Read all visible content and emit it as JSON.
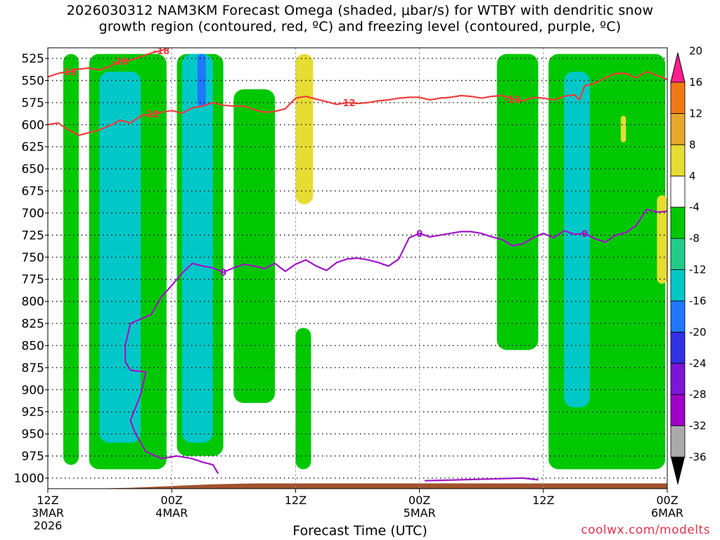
{
  "title_line1": "2026030312 NAM3KM Forecast Omega (shaded, μbar/s) for WTBY with dendritic snow",
  "title_line2": "growth region (contoured, red, ºC) and freezing level (contoured, purple, ºC)",
  "credit": "coolwx.com/modelts",
  "chart_data": {
    "type": "heatmap",
    "xlabel": "Forecast Time (UTC)",
    "ylabel": "",
    "x_ticks": [
      {
        "label": "12Z",
        "sub1": "3MAR",
        "sub2": "2026",
        "hour": 0
      },
      {
        "label": "00Z",
        "sub1": "4MAR",
        "sub2": "",
        "hour": 12
      },
      {
        "label": "12Z",
        "sub1": "",
        "sub2": "",
        "hour": 24
      },
      {
        "label": "00Z",
        "sub1": "5MAR",
        "sub2": "",
        "hour": 36
      },
      {
        "label": "12Z",
        "sub1": "",
        "sub2": "",
        "hour": 48
      },
      {
        "label": "00Z",
        "sub1": "6MAR",
        "sub2": "",
        "hour": 60
      }
    ],
    "x_range_hours": [
      0,
      60
    ],
    "y_ticks": [
      525,
      550,
      575,
      600,
      625,
      650,
      675,
      700,
      725,
      750,
      775,
      800,
      825,
      850,
      875,
      900,
      925,
      950,
      975,
      1000
    ],
    "y_range_hpa": [
      513,
      1012
    ],
    "y_inverted": true,
    "grid": true,
    "colorbar": {
      "levels": [
        -36,
        -32,
        -28,
        -24,
        -20,
        -16,
        -12,
        -8,
        -4,
        4,
        8,
        12,
        16,
        20
      ],
      "colors": [
        "#aaaaaa",
        "#a000c8",
        "#7a16d8",
        "#3030e6",
        "#1e78ff",
        "#00c8c8",
        "#22cc88",
        "#00c800",
        "#ffffff",
        "#e6dc32",
        "#e6a82a",
        "#f07814",
        "#f03232",
        "#ff1e8c"
      ]
    },
    "omega_regions": [
      {
        "name": "",
        "value": -6,
        "hours": [
          1.5,
          3.0
        ],
        "hpa": [
          520,
          985
        ]
      },
      {
        "name": "",
        "value": -6,
        "hours": [
          4.0,
          11.5
        ],
        "hpa": [
          520,
          990
        ]
      },
      {
        "name": "",
        "value": -14,
        "hours": [
          5.0,
          9.0
        ],
        "hpa": [
          540,
          960
        ]
      },
      {
        "name": "",
        "value": -6,
        "hours": [
          12.5,
          17.0
        ],
        "hpa": [
          520,
          975
        ]
      },
      {
        "name": "",
        "value": -14,
        "hours": [
          13.0,
          16.0
        ],
        "hpa": [
          520,
          960
        ]
      },
      {
        "name": "",
        "value": -18,
        "hours": [
          14.5,
          15.3
        ],
        "hpa": [
          520,
          580
        ]
      },
      {
        "name": "",
        "value": -6,
        "hours": [
          18.0,
          22.0
        ],
        "hpa": [
          560,
          915
        ]
      },
      {
        "name": "",
        "value": -6,
        "hours": [
          24.0,
          25.5
        ],
        "hpa": [
          830,
          990
        ]
      },
      {
        "name": "",
        "value": 6,
        "hours": [
          24.0,
          25.7
        ],
        "hpa": [
          520,
          690
        ]
      },
      {
        "name": "",
        "value": -6,
        "hours": [
          43.5,
          47.5
        ],
        "hpa": [
          520,
          855
        ]
      },
      {
        "name": "",
        "value": -6,
        "hours": [
          48.5,
          59.8
        ],
        "hpa": [
          520,
          990
        ]
      },
      {
        "name": "",
        "value": -14,
        "hours": [
          50.0,
          52.5
        ],
        "hpa": [
          540,
          920
        ]
      },
      {
        "name": "",
        "value": 6,
        "hours": [
          55.5,
          56.0
        ],
        "hpa": [
          590,
          620
        ]
      },
      {
        "name": "",
        "value": 6,
        "hours": [
          59.0,
          60.0
        ],
        "hpa": [
          680,
          780
        ]
      }
    ],
    "contours": [
      {
        "name": "dgz-upper",
        "label": "-18",
        "color": "#f03c3c",
        "points": [
          [
            0,
            546
          ],
          [
            1,
            542
          ],
          [
            2,
            540
          ],
          [
            3,
            537
          ],
          [
            4,
            536
          ],
          [
            5,
            538
          ],
          [
            6,
            534
          ],
          [
            7,
            528
          ],
          [
            8,
            527
          ],
          [
            9,
            523
          ],
          [
            10,
            519
          ],
          [
            11,
            516
          ],
          [
            11.5,
            514
          ]
        ]
      },
      {
        "name": "dgz-upper-right",
        "label": "",
        "color": "#f03c3c",
        "points": [
          [
            51.5,
            572
          ],
          [
            52,
            556
          ],
          [
            53,
            553
          ],
          [
            54,
            547
          ],
          [
            55,
            542
          ],
          [
            56,
            542
          ],
          [
            57,
            547
          ],
          [
            58,
            540
          ],
          [
            59,
            544
          ],
          [
            60,
            549
          ]
        ]
      },
      {
        "name": "dgz-lower",
        "label": "-12",
        "color": "#f03c3c",
        "points": [
          [
            0,
            600
          ],
          [
            1,
            598
          ],
          [
            2,
            606
          ],
          [
            3,
            612
          ],
          [
            4,
            609
          ],
          [
            5,
            606
          ],
          [
            6,
            601
          ],
          [
            7,
            595
          ],
          [
            8,
            598
          ],
          [
            9,
            590
          ],
          [
            10,
            588
          ],
          [
            11,
            586
          ],
          [
            12,
            584
          ],
          [
            13,
            587
          ],
          [
            14,
            581
          ],
          [
            15,
            579
          ],
          [
            16,
            575
          ],
          [
            17,
            578
          ],
          [
            18,
            579
          ],
          [
            19,
            579
          ],
          [
            20,
            583
          ],
          [
            21,
            586
          ],
          [
            22,
            585
          ],
          [
            23,
            582
          ],
          [
            24,
            570
          ],
          [
            25,
            568
          ],
          [
            26,
            571
          ],
          [
            27,
            574
          ],
          [
            28,
            577
          ],
          [
            29,
            575
          ],
          [
            30,
            576
          ],
          [
            31,
            575
          ],
          [
            32,
            573
          ],
          [
            33,
            572
          ],
          [
            34,
            570
          ],
          [
            35,
            569
          ],
          [
            36,
            569
          ],
          [
            37,
            572
          ],
          [
            38,
            570
          ],
          [
            39,
            569
          ],
          [
            40,
            567
          ],
          [
            41,
            568
          ],
          [
            42,
            570
          ],
          [
            43,
            568
          ],
          [
            44,
            567
          ],
          [
            45,
            571
          ],
          [
            46,
            573
          ],
          [
            47,
            569
          ],
          [
            48,
            570
          ],
          [
            49,
            572
          ],
          [
            50,
            568
          ],
          [
            51,
            566
          ],
          [
            51.5,
            572
          ]
        ]
      },
      {
        "name": "freezing-level",
        "label": "0",
        "color": "#a014c8",
        "points": [
          [
            8,
            878
          ],
          [
            7.5,
            868
          ],
          [
            7.5,
            850
          ],
          [
            8,
            825
          ],
          [
            10,
            815
          ],
          [
            11,
            795
          ],
          [
            12,
            782
          ],
          [
            13,
            768
          ],
          [
            14,
            757
          ],
          [
            15,
            760
          ],
          [
            16,
            762
          ],
          [
            17,
            767
          ],
          [
            18,
            762
          ],
          [
            19,
            758
          ],
          [
            20,
            760
          ],
          [
            21,
            763
          ],
          [
            22,
            757
          ],
          [
            23,
            766
          ],
          [
            24,
            758
          ],
          [
            25,
            753
          ],
          [
            26,
            760
          ],
          [
            27,
            765
          ],
          [
            28,
            756
          ],
          [
            29,
            752
          ],
          [
            30,
            751
          ],
          [
            31,
            753
          ],
          [
            32,
            756
          ],
          [
            33,
            760
          ],
          [
            34,
            752
          ],
          [
            35,
            728
          ],
          [
            36,
            723
          ],
          [
            37,
            727
          ],
          [
            38,
            725
          ],
          [
            39,
            723
          ],
          [
            40,
            721
          ],
          [
            41,
            721
          ],
          [
            42,
            723
          ],
          [
            43,
            727
          ],
          [
            44,
            730
          ],
          [
            45,
            737
          ],
          [
            46,
            735
          ],
          [
            47,
            728
          ],
          [
            48,
            723
          ],
          [
            49,
            728
          ],
          [
            50,
            720
          ],
          [
            51,
            724
          ],
          [
            52,
            723
          ],
          [
            53,
            729
          ],
          [
            54,
            733
          ],
          [
            55,
            725
          ],
          [
            56,
            722
          ],
          [
            57,
            714
          ],
          [
            58,
            696
          ],
          [
            59,
            699
          ],
          [
            60,
            698
          ]
        ]
      },
      {
        "name": "freezing-level-low",
        "label": "",
        "color": "#a014c8",
        "points": [
          [
            8,
            878
          ],
          [
            9.5,
            880
          ],
          [
            9,
            905
          ],
          [
            8,
            935
          ],
          [
            8.5,
            950
          ],
          [
            9.5,
            970
          ],
          [
            11,
            978
          ],
          [
            12.5,
            975
          ],
          [
            14,
            978
          ],
          [
            15,
            982
          ],
          [
            16,
            985
          ],
          [
            16.5,
            995
          ]
        ]
      },
      {
        "name": "freezing-level-sfc",
        "label": "",
        "color": "#a014c8",
        "points": [
          [
            36.5,
            1003
          ],
          [
            40,
            1002
          ],
          [
            43,
            1001
          ],
          [
            46,
            1000
          ],
          [
            47.5,
            1002
          ]
        ]
      }
    ],
    "terrain_hpa": [
      [
        0,
        1013
      ],
      [
        4,
        1012
      ],
      [
        8,
        1011
      ],
      [
        12,
        1009
      ],
      [
        16,
        1007
      ],
      [
        20,
        1006
      ],
      [
        24,
        1006
      ],
      [
        36,
        1006
      ],
      [
        48,
        1006
      ],
      [
        60,
        1006
      ]
    ]
  }
}
